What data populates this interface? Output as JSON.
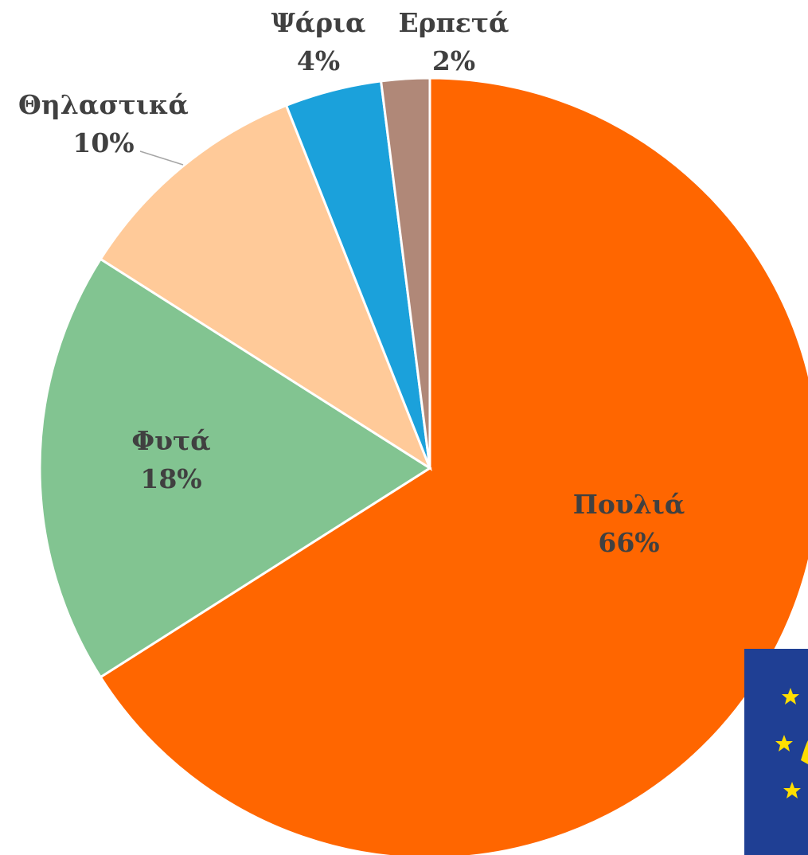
{
  "chart_data": {
    "type": "pie",
    "categories": [
      "Πουλιά",
      "Φυτά",
      "Θηλαστικά",
      "Ψάρια",
      "Ερπετά"
    ],
    "values": [
      66,
      18,
      10,
      4,
      2
    ],
    "value_labels": [
      "66%",
      "18%",
      "10%",
      "4%",
      "2%"
    ],
    "colors": [
      "#FF6600",
      "#82C491",
      "#FFCA99",
      "#1BA1DB",
      "#B08878"
    ]
  }
}
